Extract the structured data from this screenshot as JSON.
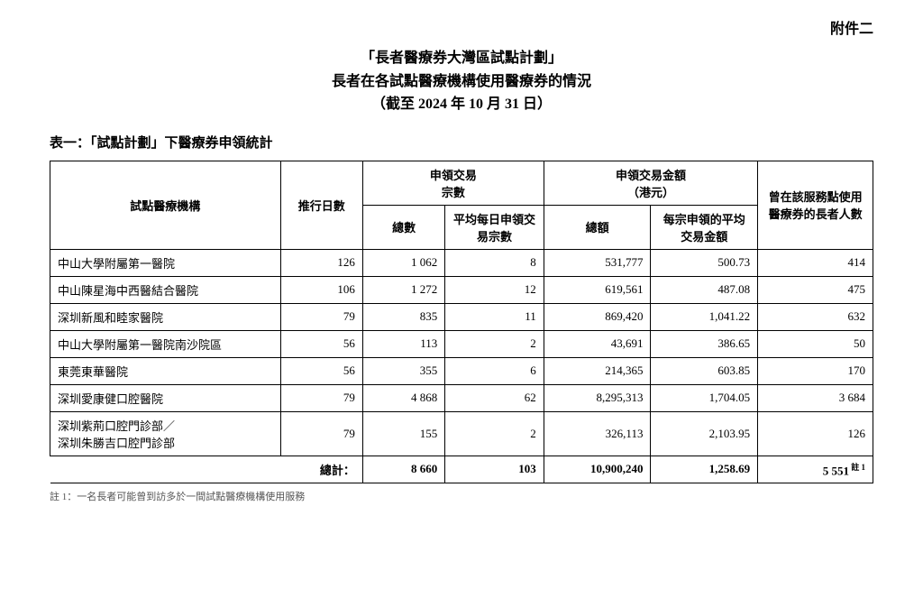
{
  "attachment_label": "附件二",
  "title": {
    "line1": "「長者醫療券大灣區試點計劃」",
    "line2": "長者在各試點醫療機構使用醫療券的情況",
    "line3": "（截至 2024 年 10 月 31 日）"
  },
  "table_caption": "表一：「試點計劃」下醫療券申領統計",
  "headers": {
    "org": "試點醫療機構",
    "days": "推行日數",
    "tx_group": "申領交易\n宗數",
    "tx_total": "總數",
    "tx_avg": "平均每日申領交易宗數",
    "amt_group": "申領交易金額\n（港元）",
    "amt_total": "總額",
    "amt_avg": "每宗申領的平均交易金額",
    "users": "曾在該服務點使用醫療券的長者人數"
  },
  "rows": [
    {
      "org": "中山大學附屬第一醫院",
      "days": "126",
      "tx_total": "1 062",
      "tx_avg": "8",
      "amt_total": "531,777",
      "amt_avg": "500.73",
      "users": "414"
    },
    {
      "org": "中山陳星海中西醫結合醫院",
      "days": "106",
      "tx_total": "1 272",
      "tx_avg": "12",
      "amt_total": "619,561",
      "amt_avg": "487.08",
      "users": "475"
    },
    {
      "org": "深圳新風和睦家醫院",
      "days": "79",
      "tx_total": "835",
      "tx_avg": "11",
      "amt_total": "869,420",
      "amt_avg": "1,041.22",
      "users": "632"
    },
    {
      "org": "中山大學附屬第一醫院南沙院區",
      "days": "56",
      "tx_total": "113",
      "tx_avg": "2",
      "amt_total": "43,691",
      "amt_avg": "386.65",
      "users": "50"
    },
    {
      "org": "東莞東華醫院",
      "days": "56",
      "tx_total": "355",
      "tx_avg": "6",
      "amt_total": "214,365",
      "amt_avg": "603.85",
      "users": "170"
    },
    {
      "org": "深圳愛康健口腔醫院",
      "days": "79",
      "tx_total": "4 868",
      "tx_avg": "62",
      "amt_total": "8,295,313",
      "amt_avg": "1,704.05",
      "users": "3 684"
    },
    {
      "org": "深圳紫荊口腔門診部／\n深圳朱勝吉口腔門診部",
      "days": "79",
      "tx_total": "155",
      "tx_avg": "2",
      "amt_total": "326,113",
      "amt_avg": "2,103.95",
      "users": "126"
    }
  ],
  "totals": {
    "label": "總計：",
    "tx_total": "8 660",
    "tx_avg": "103",
    "amt_total": "10,900,240",
    "amt_avg": "1,258.69",
    "users": "5 551",
    "users_sup": "註 1"
  },
  "footnote": "註 1：一名長者可能曾到訪多於一間試點醫療機構使用服務"
}
